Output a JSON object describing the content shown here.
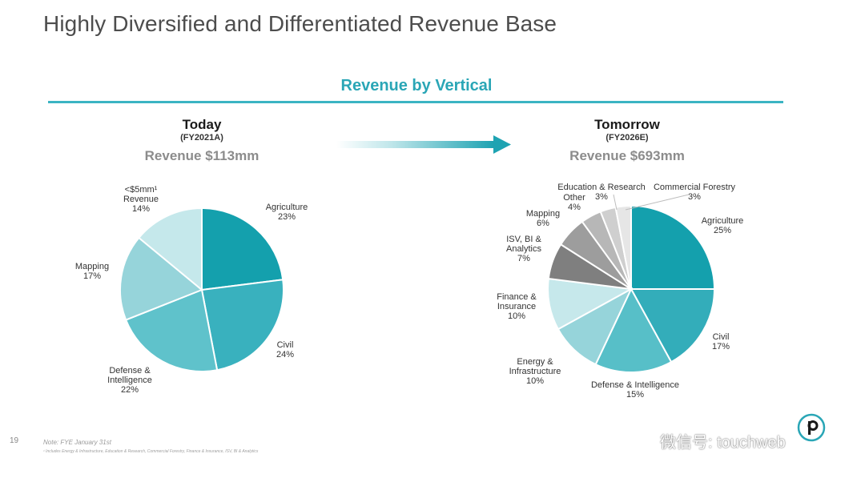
{
  "slide": {
    "title": "Highly Diversified and Differentiated Revenue Base",
    "section_heading": "Revenue by Vertical",
    "page_number": "19",
    "note": "Note: FYE January 31st",
    "footnote": "¹ Includes Energy & Infrastructure, Education & Research, Commercial Forestry, Finance & Insurance, ISV, BI & Analytics",
    "watermark": "微信号: touchweb"
  },
  "colors": {
    "accent": "#2aa6b6",
    "rule": "#3bb4c3"
  },
  "icons": [
    "right-arrow-icon",
    "logo-icon",
    "wechat-icon"
  ],
  "chart_data": [
    {
      "type": "pie",
      "title": "Today",
      "subtitle": "(FY2021A)",
      "revenue": "Revenue $113mm",
      "slices": [
        {
          "label": "Agriculture",
          "value": 23,
          "color": "#14a0ad"
        },
        {
          "label": "Civil",
          "value": 24,
          "color": "#39b1be"
        },
        {
          "label": "Defense & Intelligence",
          "value": 22,
          "color": "#5fc2cb"
        },
        {
          "label": "Mapping",
          "value": 17,
          "color": "#96d4da"
        },
        {
          "label": "<$5mm¹ Revenue",
          "value": 14,
          "color": "#c5e8eb"
        }
      ]
    },
    {
      "type": "pie",
      "title": "Tomorrow",
      "subtitle": "(FY2026E)",
      "revenue": "Revenue $693mm",
      "slices": [
        {
          "label": "Agriculture",
          "value": 25,
          "color": "#14a0ad"
        },
        {
          "label": "Civil",
          "value": 17,
          "color": "#33adba"
        },
        {
          "label": "Defense & Intelligence",
          "value": 15,
          "color": "#57bfc8"
        },
        {
          "label": "Energy & Infrastructure",
          "value": 10,
          "color": "#96d4da"
        },
        {
          "label": "Finance & Insurance",
          "value": 10,
          "color": "#c6e8eb"
        },
        {
          "label": "ISV, BI & Analytics",
          "value": 7,
          "color": "#7f7f7f"
        },
        {
          "label": "Mapping",
          "value": 6,
          "color": "#9d9d9d"
        },
        {
          "label": "Other",
          "value": 4,
          "color": "#b7b7b7"
        },
        {
          "label": "Education & Research",
          "value": 3,
          "color": "#cfcfcf"
        },
        {
          "label": "Commercial Forestry",
          "value": 3,
          "color": "#e6e6e6"
        }
      ]
    }
  ]
}
